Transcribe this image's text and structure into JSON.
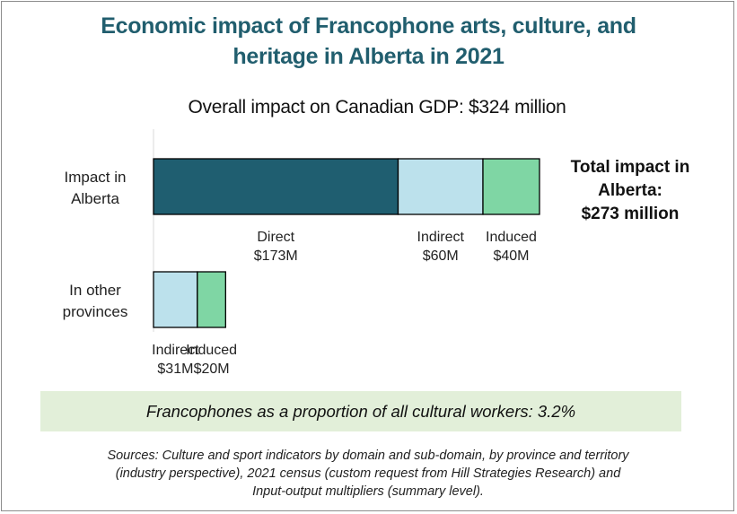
{
  "title_lines": [
    "Economic impact of Francophone arts, culture, and",
    "heritage in Alberta in 2021"
  ],
  "subtitle": "Overall impact on Canadian GDP: $324 million",
  "total_lines": [
    "Total impact in",
    "Alberta:",
    "$273 million"
  ],
  "banner": "Francophones as a proportion of all cultural workers: 3.2%",
  "sources_lines": [
    "Sources: Culture and sport indicators by domain and sub-domain, by province and territory",
    "(industry perspective), 2021 census (custom request from Hill Strategies Research) and",
    "Input-output multipliers (summary level)."
  ],
  "colors": {
    "direct": "#1f5e70",
    "indirect": "#bce1ec",
    "induced": "#7fd6a4",
    "title": "#215e6e",
    "banner": "#e2efd9"
  },
  "chart_data": {
    "type": "bar",
    "orientation": "horizontal",
    "stacked": true,
    "unit": "$M",
    "categories": [
      {
        "label_lines": [
          "Impact in",
          "Alberta"
        ]
      },
      {
        "label_lines": [
          "In other",
          "provinces"
        ]
      }
    ],
    "series": [
      {
        "name": "Direct",
        "color": "#1f5e70",
        "values": [
          173,
          0
        ],
        "labels": [
          "$173M",
          ""
        ]
      },
      {
        "name": "Indirect",
        "color": "#bce1ec",
        "values": [
          60,
          31
        ],
        "labels": [
          "$60M",
          "$31M"
        ]
      },
      {
        "name": "Induced",
        "color": "#7fd6a4",
        "values": [
          40,
          20
        ],
        "labels": [
          "$40M",
          "$20M"
        ]
      }
    ],
    "grid": false,
    "legend": "none"
  }
}
